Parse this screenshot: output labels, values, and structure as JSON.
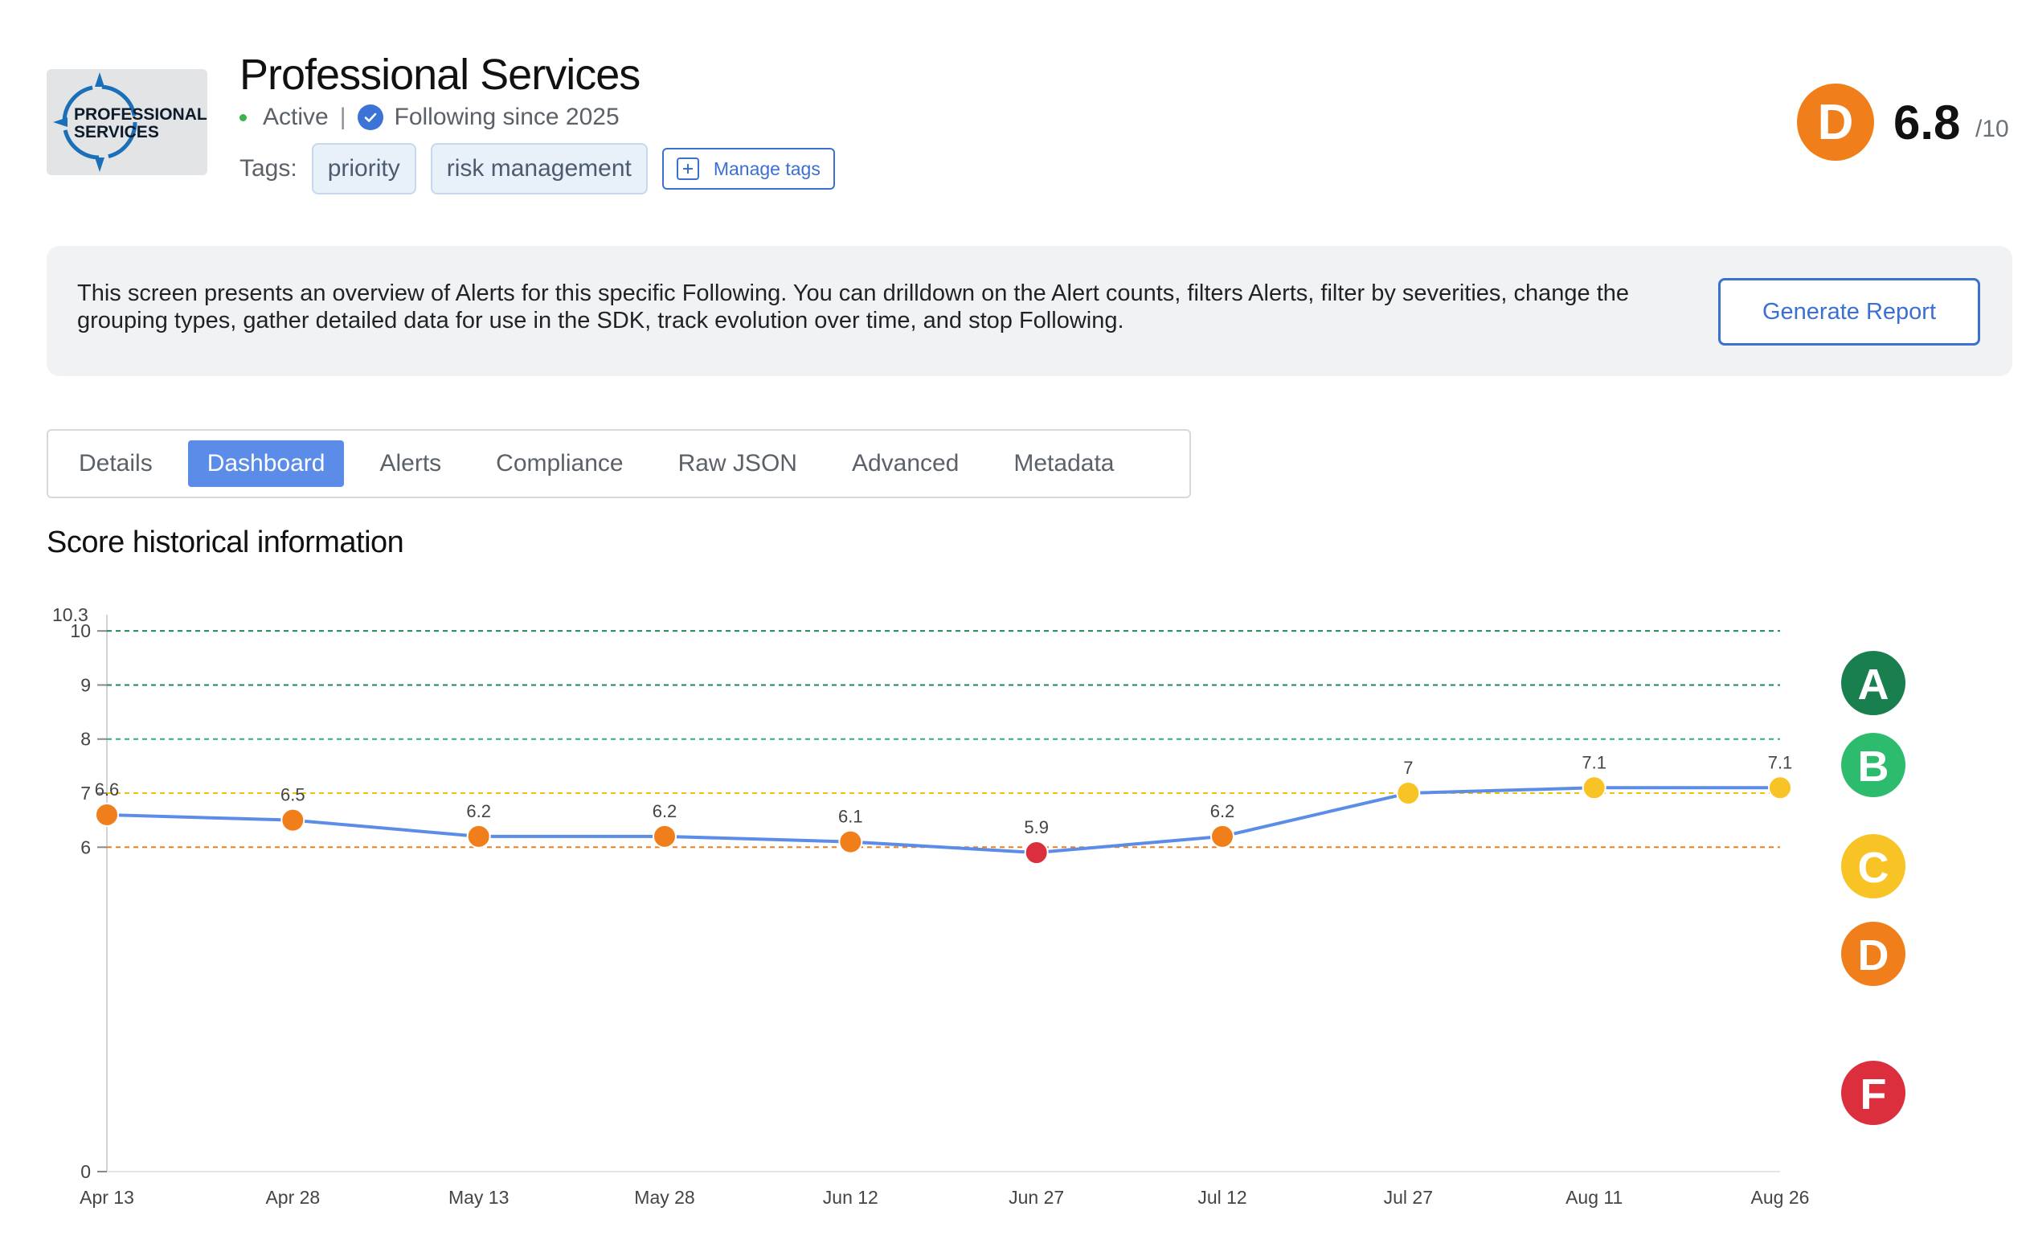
{
  "header": {
    "logo_line1": "PROFESSIONAL",
    "logo_line2": "SERVICES",
    "title": "Professional Services",
    "status": "Active",
    "separator": "|",
    "following": "Following since 2025",
    "tags_label": "Tags:",
    "tags": [
      "priority",
      "risk management"
    ],
    "manage_tags_label": "Manage tags",
    "grade": "D",
    "score": "6.8",
    "score_denominator": "/10",
    "colors": {
      "grade_d": "#f07f1b",
      "active_dot": "#3cb44b",
      "accent": "#3b6fd1"
    }
  },
  "info": {
    "text": "This screen presents an overview of Alerts for this specific Following. You can drilldown on the Alert counts, filters Alerts, filter by severities, change the grouping types, gather detailed data for use in the SDK, track evolution over time, and stop Following.",
    "generate_report_label": "Generate Report"
  },
  "tabs": [
    {
      "label": "Details",
      "active": false
    },
    {
      "label": "Dashboard",
      "active": true
    },
    {
      "label": "Alerts",
      "active": false
    },
    {
      "label": "Compliance",
      "active": false
    },
    {
      "label": "Raw JSON",
      "active": false
    },
    {
      "label": "Advanced",
      "active": false
    },
    {
      "label": "Metadata",
      "active": false
    }
  ],
  "section_title": "Score historical information",
  "chart_data": {
    "type": "line",
    "title": "",
    "xlabel": "",
    "ylabel": "",
    "categories": [
      "Apr 13",
      "Apr 28",
      "May 13",
      "May 28",
      "Jun 12",
      "Jun 27",
      "Jul 12",
      "Jul 27",
      "Aug 11",
      "Aug 26"
    ],
    "values": [
      6.6,
      6.5,
      6.2,
      6.2,
      6.1,
      5.9,
      6.2,
      7,
      7.1,
      7.1
    ],
    "point_labels": [
      "6.6",
      "6.5",
      "6.2",
      "6.2",
      "6.1",
      "5.9",
      "6.2",
      "7",
      "7.1",
      "7.1"
    ],
    "ylim": [
      0,
      10.3
    ],
    "y_ticks": [
      "0",
      "6",
      "7",
      "8",
      "9",
      "10",
      "10.3"
    ],
    "y_tick_values": [
      0,
      6,
      7,
      8,
      9,
      10,
      10.3
    ],
    "threshold_lines": [
      {
        "value": 10,
        "color": "#1e8a5a"
      },
      {
        "value": 9,
        "color": "#1e8a5a"
      },
      {
        "value": 8,
        "color": "#2fae7a"
      },
      {
        "value": 7,
        "color": "#f2c200"
      },
      {
        "value": 6,
        "color": "#f07f1b"
      }
    ],
    "grade_bands": [
      {
        "grade": "A",
        "color": "#1a7f4e",
        "low": 9,
        "high": 10
      },
      {
        "grade": "B",
        "color": "#2dbb6e",
        "low": 8,
        "high": 9
      },
      {
        "grade": "C",
        "color": "#f7c325",
        "low": 7,
        "high": 8
      },
      {
        "grade": "D",
        "color": "#f07f1b",
        "low": 6,
        "high": 7
      },
      {
        "grade": "F",
        "color": "#dc2f3e",
        "low": 0,
        "high": 6
      }
    ],
    "line_color": "#5b8de8",
    "grid": false,
    "legend": "right"
  }
}
